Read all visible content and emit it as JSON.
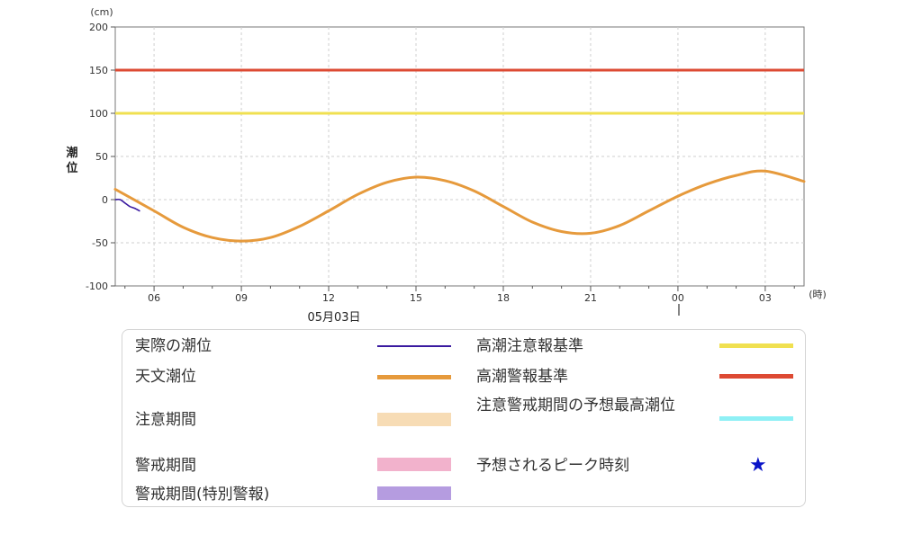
{
  "chart_data": {
    "type": "line",
    "ylabel": "潮位",
    "y_unit": "(cm)",
    "x_unit": "(時)",
    "date_label": "05月03日",
    "ylim": [
      -100,
      200
    ],
    "yticks": [
      "200",
      "150",
      "100",
      "50",
      "0",
      "-50",
      "-100"
    ],
    "xlim": [
      "04:40",
      "04:20 (+1 day)"
    ],
    "xticks": [
      "06",
      "09",
      "12",
      "15",
      "18",
      "21",
      "00",
      "03"
    ],
    "grid": true,
    "thresholds": [
      {
        "name": "高潮注意報基準",
        "value": 100,
        "color": "#f0e050"
      },
      {
        "name": "高潮警報基準",
        "value": 150,
        "color": "#dd4a33"
      }
    ],
    "series": [
      {
        "name": "天文潮位",
        "color": "#e69a3c",
        "x": [
          "04:40",
          "06:00",
          "07:00",
          "08:00",
          "09:00",
          "10:00",
          "11:00",
          "12:00",
          "13:00",
          "14:00",
          "15:00",
          "16:00",
          "17:00",
          "18:00",
          "19:00",
          "20:00",
          "21:00",
          "22:00",
          "23:00",
          "00:00",
          "01:00",
          "02:00",
          "03:00",
          "04:20"
        ],
        "y": [
          12,
          -13,
          -32,
          -44,
          -48,
          -44,
          -31,
          -13,
          6,
          20,
          26,
          22,
          10,
          -8,
          -26,
          -37,
          -39,
          -30,
          -13,
          4,
          18,
          28,
          33,
          21
        ]
      },
      {
        "name": "実際の潮位",
        "color": "#3a1aa0",
        "x": [
          "04:40",
          "04:50",
          "05:00",
          "05:10",
          "05:20",
          "05:30"
        ],
        "y": [
          0,
          0,
          -4,
          -8,
          -10,
          -13
        ]
      }
    ]
  },
  "legend": {
    "actual": "実際の潮位",
    "astronomical": "天文潮位",
    "caution_period": "注意期間",
    "warning_period": "警戒期間",
    "special_warning_period": "警戒期間(特別警報)",
    "advisory_level": "高潮注意報基準",
    "warning_level": "高潮警報基準",
    "predicted_max": "注意警戒期間の予想最高潮位",
    "peak_time": "予想されるピーク時刻"
  },
  "colors": {
    "actual": "#3a1aa0",
    "astronomical": "#e69a3c",
    "caution_period": "#f7dcb5",
    "warning_period": "#f2b2cc",
    "special_warning_period": "#b59ce0",
    "advisory_level": "#f0e050",
    "warning_level": "#dd4a33",
    "predicted_max": "#8ef0f5",
    "peak_star": "#0a14c8"
  }
}
